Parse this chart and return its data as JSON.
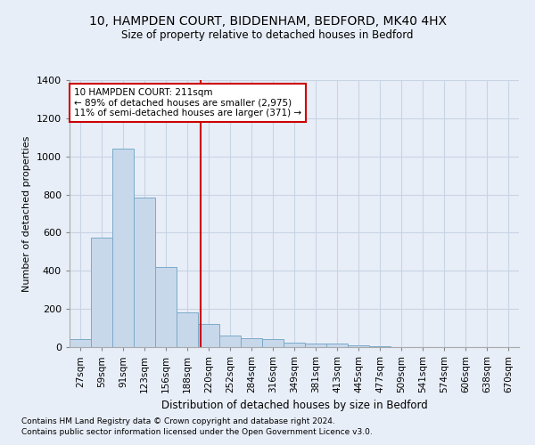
{
  "title1": "10, HAMPDEN COURT, BIDDENHAM, BEDFORD, MK40 4HX",
  "title2": "Size of property relative to detached houses in Bedford",
  "xlabel": "Distribution of detached houses by size in Bedford",
  "ylabel": "Number of detached properties",
  "categories": [
    "27sqm",
    "59sqm",
    "91sqm",
    "123sqm",
    "156sqm",
    "188sqm",
    "220sqm",
    "252sqm",
    "284sqm",
    "316sqm",
    "349sqm",
    "381sqm",
    "413sqm",
    "445sqm",
    "477sqm",
    "509sqm",
    "541sqm",
    "574sqm",
    "606sqm",
    "638sqm",
    "670sqm"
  ],
  "values": [
    40,
    575,
    1040,
    785,
    420,
    180,
    120,
    60,
    45,
    40,
    25,
    20,
    18,
    10,
    5,
    2,
    1,
    1,
    0,
    0,
    0
  ],
  "bar_color": "#c8d8eb",
  "bar_edge_color": "#7aaac8",
  "bar_linewidth": 0.7,
  "grid_color": "#c8d4e4",
  "bg_color": "#e8eef8",
  "red_line_x": 5.62,
  "annotation_text": "10 HAMPDEN COURT: 211sqm\n← 89% of detached houses are smaller (2,975)\n11% of semi-detached houses are larger (371) →",
  "annotation_box_color": "#ffffff",
  "annotation_edge_color": "#cc0000",
  "footnote1": "Contains HM Land Registry data © Crown copyright and database right 2024.",
  "footnote2": "Contains public sector information licensed under the Open Government Licence v3.0.",
  "ylim": [
    0,
    1400
  ],
  "yticks": [
    0,
    200,
    400,
    600,
    800,
    1000,
    1200,
    1400
  ]
}
